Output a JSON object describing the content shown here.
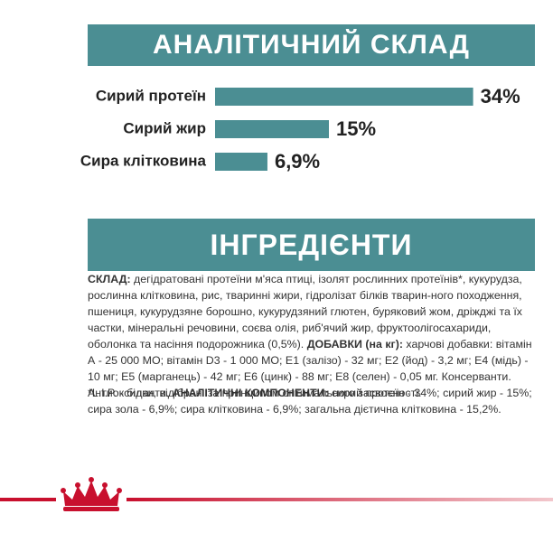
{
  "chart_data": {
    "type": "bar",
    "title": "АНАЛІТИЧНИЙ СКЛАД",
    "categories": [
      "Сирий протеїн",
      "Сирий жир",
      "Сира клітковина"
    ],
    "values": [
      34,
      15,
      6.9
    ],
    "value_labels": [
      "34%",
      "15%",
      "6,9%"
    ],
    "color": "#4b8e93"
  },
  "ingredients": {
    "title": "ІНГРЕДІЄНТИ",
    "paragraph": [
      {
        "text": "СКЛАД:",
        "bold": true
      },
      {
        "text": " дегідратовані протеїни м'яса птиці, ізолят рослинних протеїнів*, кукурудза, рослинна клітковина, рис, тваринні жири, гідролізат білків тварин-ного походження, пшениця, кукурудзяне борошно, кукурудзяний глютен, буряковий жом, дріжджі та їх частки, мінеральні речовини, соєва олія, риб'ячий жир, фруктоолігосахариди, оболонка та насіння подорожника (0,5%). ",
        "bold": false
      },
      {
        "text": "ДОБАВКИ (на кг):",
        "bold": true
      },
      {
        "text": " харчові добавки: вітамін А - 25 000 МО; вітамін D3 - 1 000 МО; Е1 (залізо) - 32 мг; Е2 (йод) - 3,2 мг; Е4 (мідь) - 10 мг; Е5 (марганець) - 42 мг; Е6 (цинк) - 88 мг; Е8 (селен) - 0,05 мг. Консерванти. Антиоксиданти. ",
        "bold": false
      },
      {
        "text": "АНАЛІТИЧНІ КОМПОНЕНТИ:",
        "bold": true
      },
      {
        "text": " сирий протеїн - 34%; сирий жир - 15%; сира зола - 6,9%; сира клітковина - 6,9%; загальна дієтична клітковина - 15,2%.",
        "bold": false
      }
    ],
    "footnote": "*L.I.P. - білки, відібрані за принципом оптимального засвоєності."
  }
}
